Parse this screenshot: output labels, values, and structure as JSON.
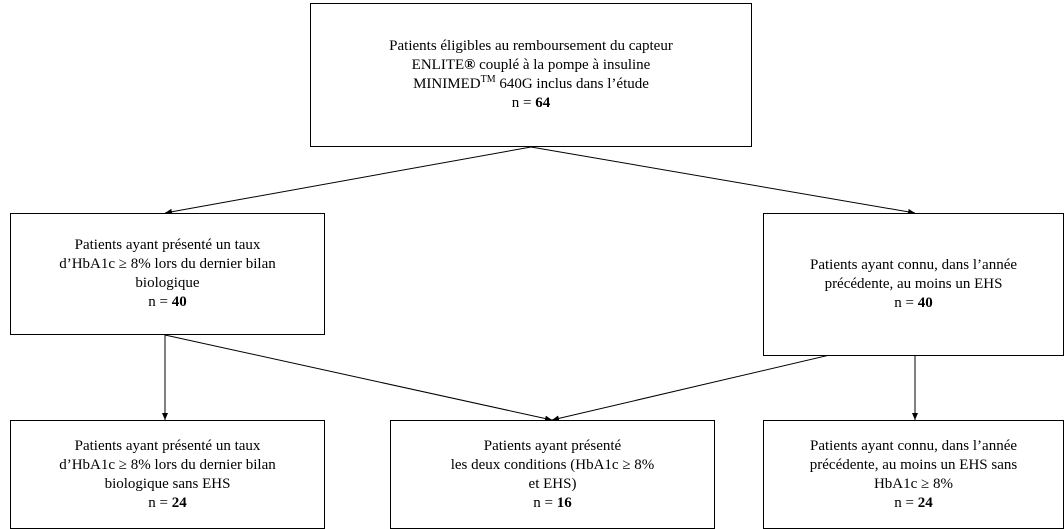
{
  "nodes": [
    {
      "lines": [
        [
          "Patients éligibles au remboursement du capteur"
        ],
        [
          "ENLITE",
          {
            "text": "®",
            "bold": true
          },
          " couplé à la pompe à insuline"
        ],
        [
          "MINIMED",
          {
            "text": "TM",
            "sup": true
          },
          " 640G inclus dans l’étude"
        ]
      ],
      "n_label": "n =",
      "n": 64
    },
    {
      "lines": [
        [
          "Patients ayant présenté un taux"
        ],
        [
          "d’HbA1c ≥ 8% lors du dernier bilan"
        ],
        [
          "biologique"
        ]
      ],
      "n_label": "n =",
      "n": 40
    },
    {
      "lines": [
        [
          "Patients ayant connu, dans l’année"
        ],
        [
          "précédente, au moins un EHS"
        ]
      ],
      "n_label": "n =",
      "n": 40
    },
    {
      "lines": [
        [
          "Patients ayant présenté un taux"
        ],
        [
          "d’HbA1c ≥ 8% lors du dernier bilan"
        ],
        [
          "biologique sans EHS"
        ]
      ],
      "n_label": "n =",
      "n": 24
    },
    {
      "lines": [
        [
          "Patients ayant présenté"
        ],
        [
          "les deux conditions (HbA1c ≥ 8%"
        ],
        [
          "et EHS)"
        ]
      ],
      "n_label": "n =",
      "n": 16
    },
    {
      "lines": [
        [
          "Patients ayant connu, dans l’année"
        ],
        [
          "précédente, au moins un EHS sans"
        ],
        [
          "HbA1c ≥ 8%"
        ]
      ],
      "n_label": "n =",
      "n": 24
    }
  ]
}
